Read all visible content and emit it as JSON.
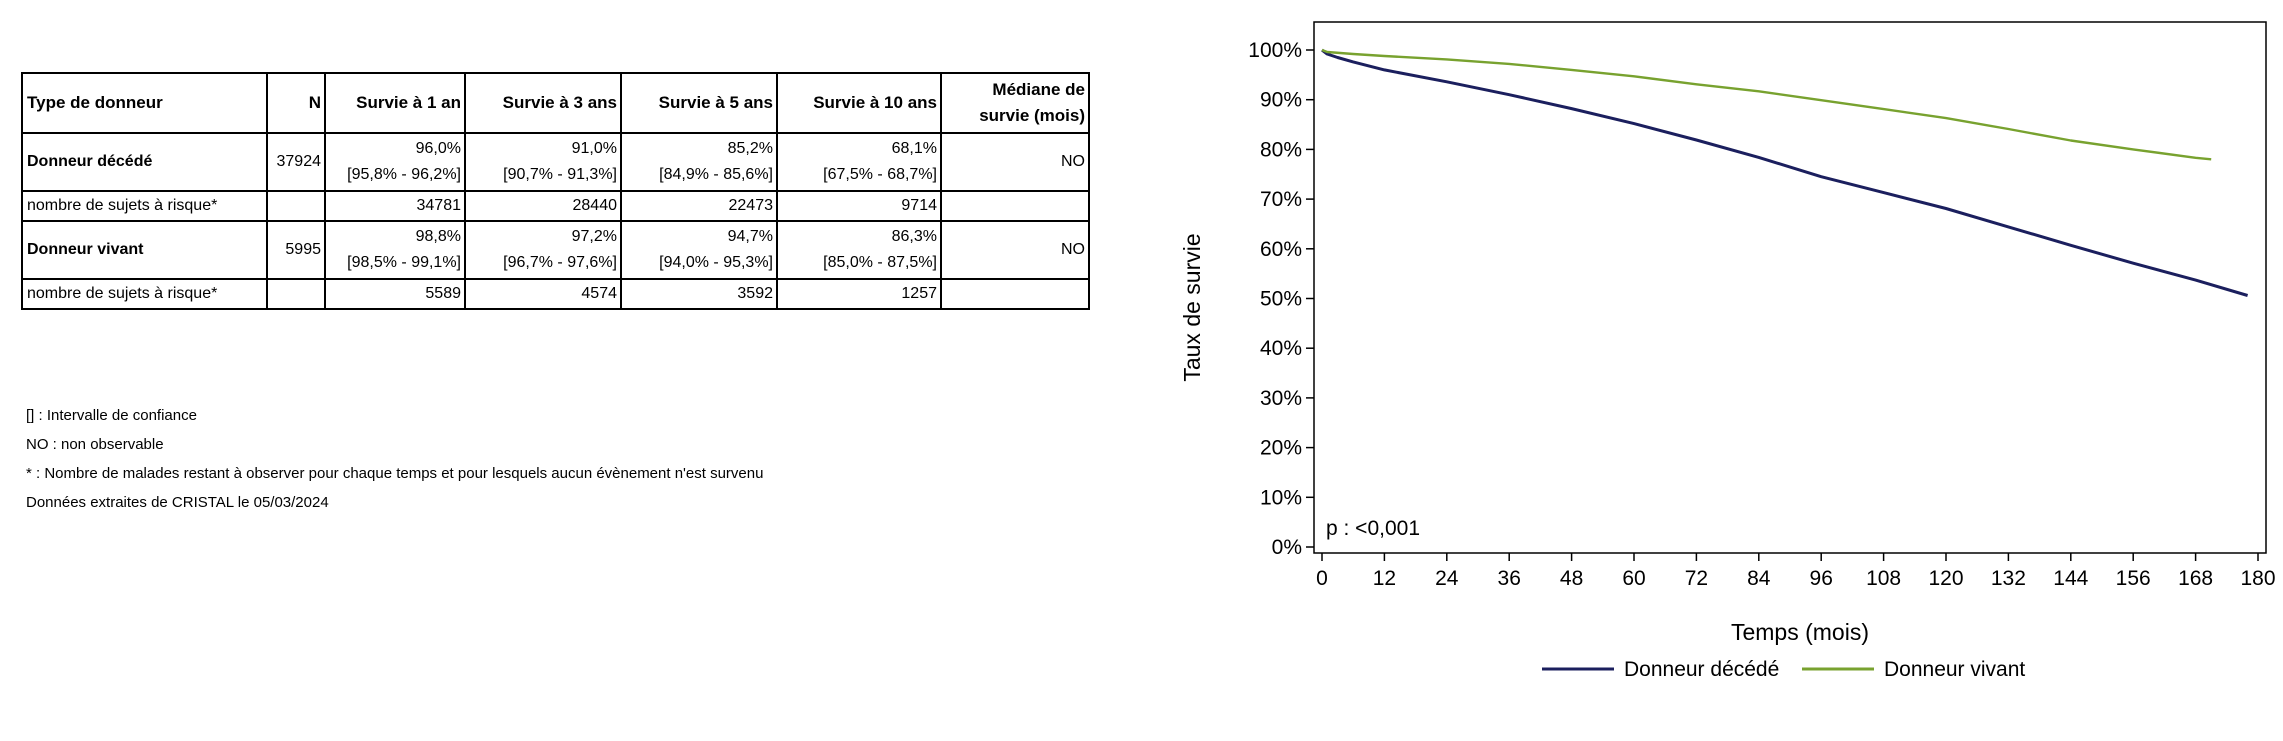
{
  "table": {
    "headers": {
      "type": "Type de donneur",
      "n": "N",
      "s1": "Survie à 1 an",
      "s3": "Survie à 3 ans",
      "s5": "Survie à 5 ans",
      "s10": "Survie à 10 ans",
      "median_line1": "Médiane de",
      "median_line2": "survie (mois)"
    },
    "rows": [
      {
        "label": "Donneur décédé",
        "n": "37924",
        "values": [
          "96,0%",
          "91,0%",
          "85,2%",
          "68,1%"
        ],
        "ci": [
          "[95,8% - 96,2%]",
          "[90,7% - 91,3%]",
          "[84,9% - 85,6%]",
          "[67,5% - 68,7%]"
        ],
        "median": "NO",
        "risk_label": "nombre de sujets à risque*",
        "risk": [
          "34781",
          "28440",
          "22473",
          "9714"
        ]
      },
      {
        "label": "Donneur vivant",
        "n": "5995",
        "values": [
          "98,8%",
          "97,2%",
          "94,7%",
          "86,3%"
        ],
        "ci": [
          "[98,5% - 99,1%]",
          "[96,7% - 97,6%]",
          "[94,0% - 95,3%]",
          "[85,0% - 87,5%]"
        ],
        "median": "NO",
        "risk_label": "nombre de sujets à risque*",
        "risk": [
          "5589",
          "4574",
          "3592",
          "1257"
        ]
      }
    ]
  },
  "notes": [
    "[] : Intervalle de confiance",
    "NO : non observable",
    "* : Nombre de malades restant à observer pour chaque temps et pour lesquels aucun évènement n'est survenu",
    "Données extraites de CRISTAL le 05/03/2024"
  ],
  "chart_data": {
    "type": "line",
    "title": "",
    "xlabel": "Temps (mois)",
    "ylabel": "Taux de survie",
    "xlim": [
      0,
      180
    ],
    "ylim": [
      0,
      100
    ],
    "x_ticks": [
      0,
      12,
      24,
      36,
      48,
      60,
      72,
      84,
      96,
      108,
      120,
      132,
      144,
      156,
      168,
      180
    ],
    "y_ticks": [
      0,
      10,
      20,
      30,
      40,
      50,
      60,
      70,
      80,
      90,
      100
    ],
    "y_tick_labels": [
      "0%",
      "10%",
      "20%",
      "30%",
      "40%",
      "50%",
      "60%",
      "70%",
      "80%",
      "90%",
      "100%"
    ],
    "annotation": "p : <0,001",
    "legend_position": "bottom",
    "grid": false,
    "series": [
      {
        "name": "Donneur décédé",
        "color": "#1b1f5e",
        "x": [
          0,
          1,
          3,
          6,
          12,
          24,
          36,
          48,
          60,
          72,
          84,
          96,
          108,
          120,
          132,
          144,
          156,
          168,
          178
        ],
        "y": [
          100,
          99.2,
          98.5,
          97.6,
          96.0,
          93.6,
          91.0,
          88.2,
          85.2,
          81.9,
          78.4,
          74.5,
          71.3,
          68.1,
          64.4,
          60.7,
          57.1,
          53.7,
          50.6
        ]
      },
      {
        "name": "Donneur vivant",
        "color": "#78a22f",
        "x": [
          0,
          1,
          6,
          12,
          24,
          36,
          48,
          60,
          72,
          84,
          96,
          108,
          120,
          132,
          144,
          156,
          168,
          171
        ],
        "y": [
          100,
          99.6,
          99.2,
          98.8,
          98.1,
          97.2,
          96.0,
          94.7,
          93.1,
          91.7,
          89.9,
          88.1,
          86.3,
          84.1,
          81.8,
          80.0,
          78.3,
          78.0
        ]
      }
    ]
  }
}
